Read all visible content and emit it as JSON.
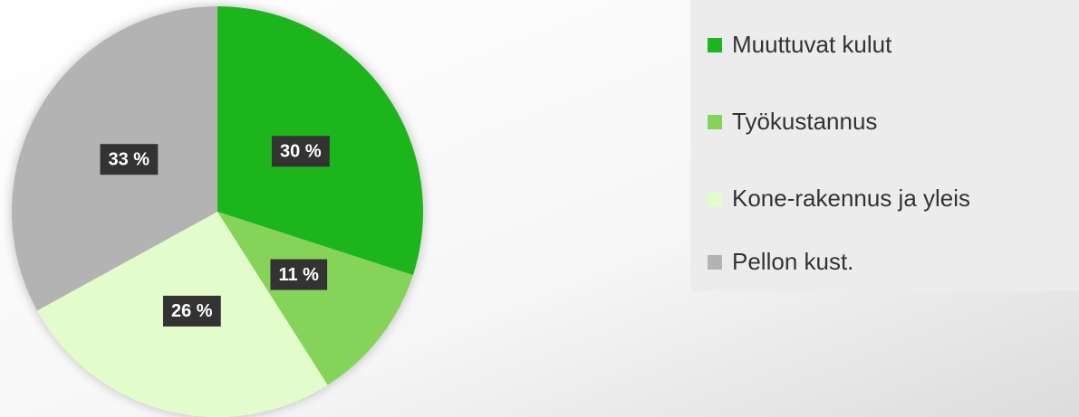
{
  "chart_data": {
    "type": "pie",
    "categories": [
      "Muuttuvat kulut",
      "Työkustannus",
      "Kone-rakennus ja yleis",
      "Pellon kust."
    ],
    "values": [
      30,
      11,
      26,
      33
    ],
    "value_labels": [
      "30 %",
      "11 %",
      "26 %",
      "33 %"
    ],
    "colors": [
      "#1fb51f",
      "#86d35a",
      "#e3fccb",
      "#b3b3b3"
    ],
    "legend": "right"
  }
}
